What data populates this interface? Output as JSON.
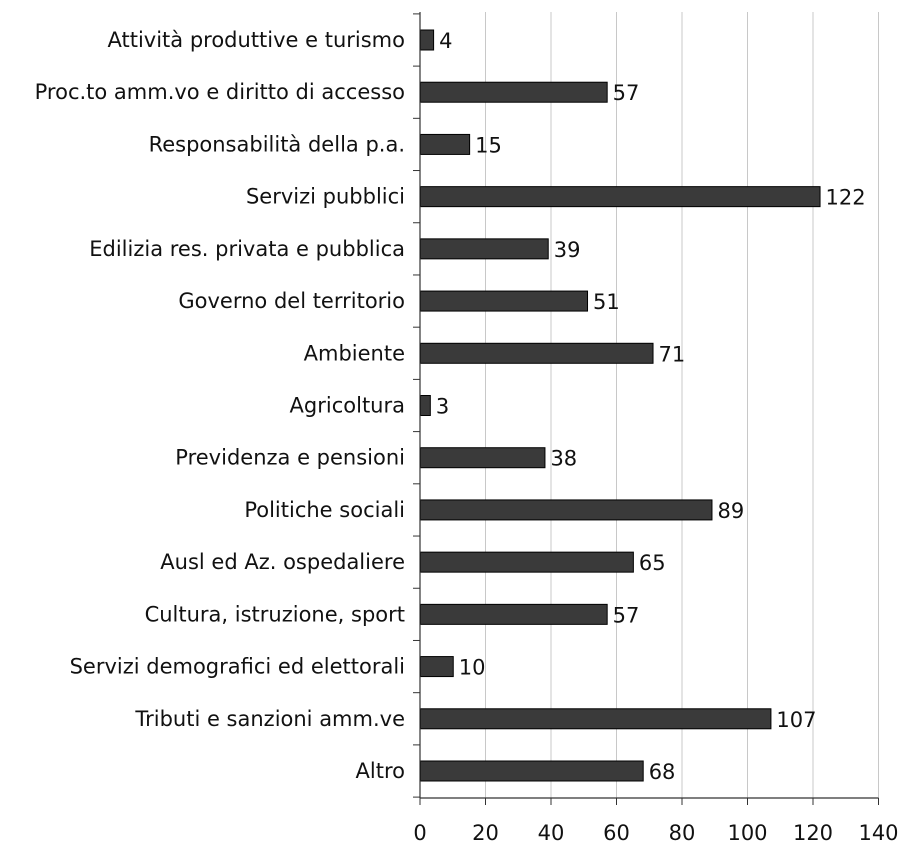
{
  "chart_data": {
    "type": "bar",
    "orientation": "horizontal",
    "title": "",
    "xlabel": "",
    "ylabel": "",
    "categories": [
      "Attività produttive e turismo",
      "Proc.to amm.vo e diritto di accesso",
      "Responsabilità della p.a.",
      "Servizi pubblici",
      "Edilizia res. privata e pubblica",
      "Governo del territorio",
      "Ambiente",
      "Agricoltura",
      "Previdenza e pensioni",
      "Politiche sociali",
      "Ausl ed Az. ospedaliere",
      "Cultura, istruzione, sport",
      "Servizi demografici ed elettorali",
      "Tributi e sanzioni amm.ve",
      "Altro"
    ],
    "values": [
      4,
      57,
      15,
      122,
      39,
      51,
      71,
      3,
      38,
      89,
      65,
      57,
      10,
      107,
      68
    ],
    "xlim": [
      0,
      140
    ],
    "xticks": [
      0,
      20,
      40,
      60,
      80,
      100,
      120,
      140
    ],
    "grid": true,
    "legend": "none",
    "colors": {
      "bar": "#3a3a3a",
      "bar_edge": "#000000",
      "grid": "#c8c8c8",
      "axis": "#333333"
    }
  }
}
